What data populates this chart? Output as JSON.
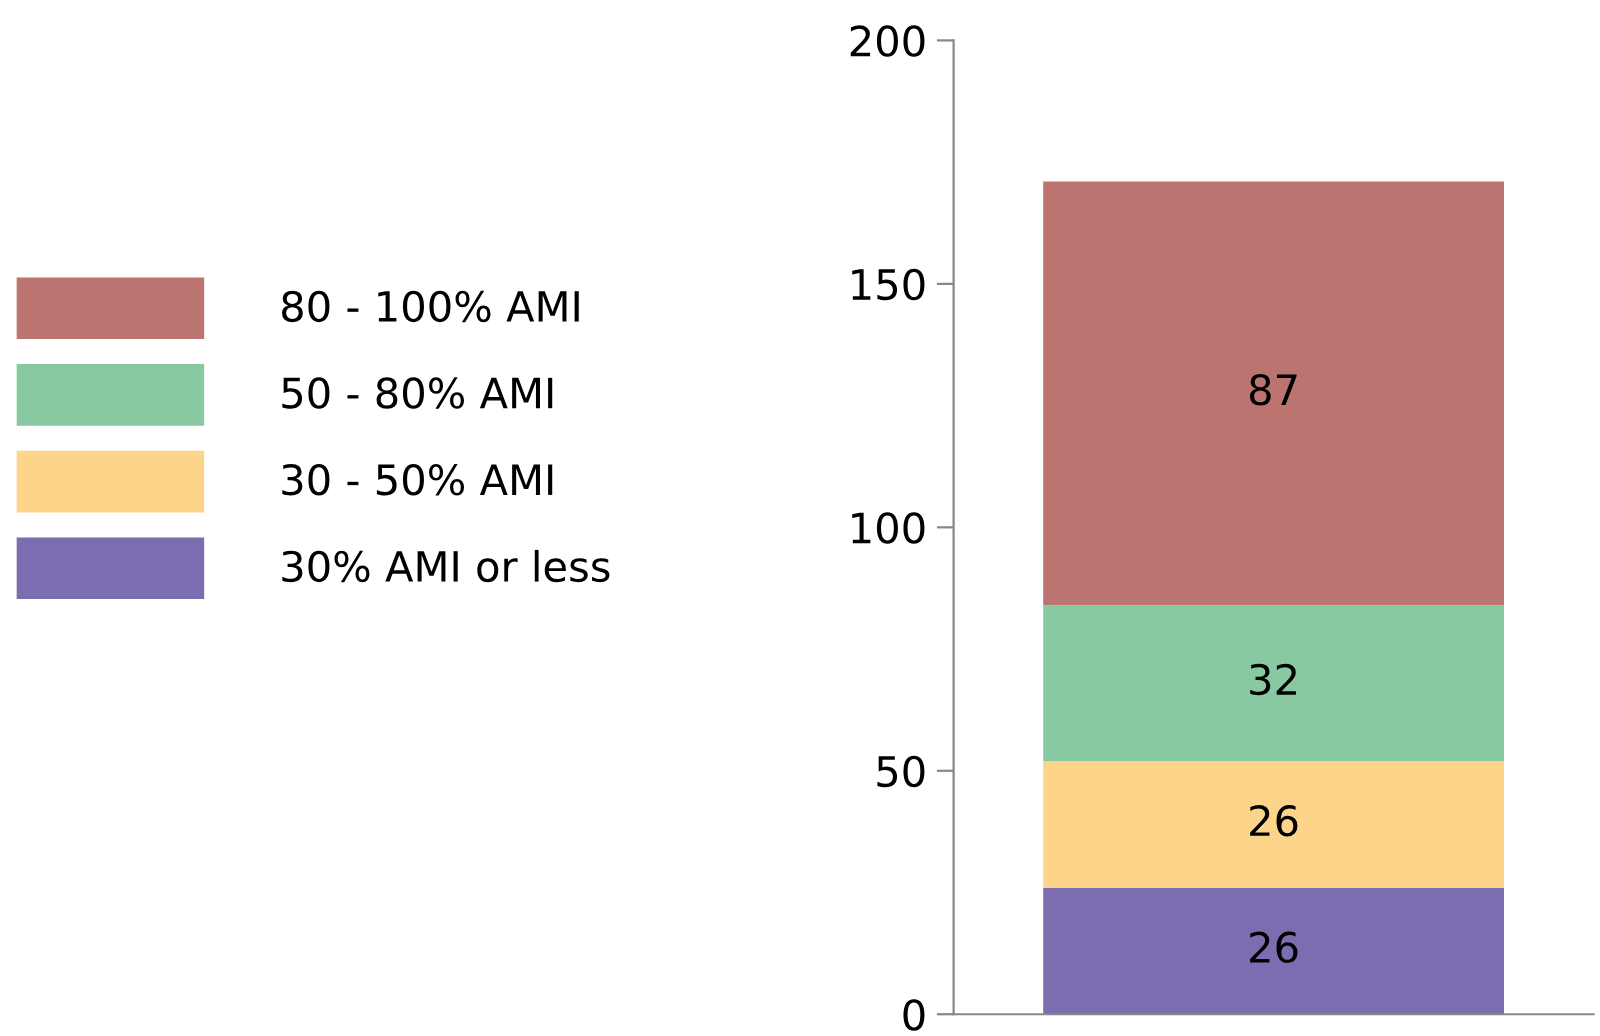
{
  "chart_data": {
    "type": "bar",
    "stacked": true,
    "categories": [
      null
    ],
    "series": [
      {
        "name": "30% AMI or less",
        "color": "#7b6db0",
        "values": [
          26
        ]
      },
      {
        "name": "30 - 50% AMI",
        "color": "#fdd58a",
        "values": [
          26
        ]
      },
      {
        "name": "50 - 80% AMI",
        "color": "#88c9a1",
        "values": [
          32
        ]
      },
      {
        "name": "80 - 100% AMI",
        "color": "#bb7470",
        "values": [
          87
        ]
      }
    ],
    "ylim": [
      0,
      200
    ],
    "yticks": [
      0,
      50,
      100,
      150,
      200
    ],
    "data_labels": true,
    "legend": "left",
    "grid": false
  }
}
